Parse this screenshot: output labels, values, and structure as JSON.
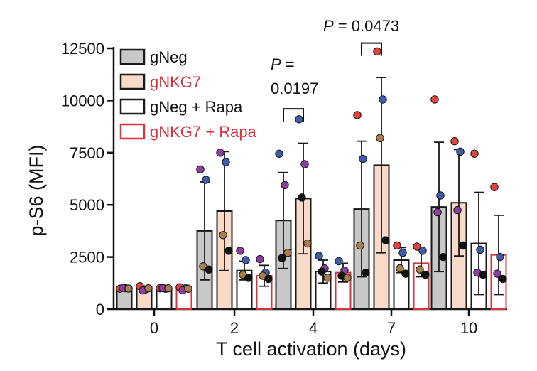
{
  "chart_data": {
    "type": "bar",
    "xlabel": "T cell activation (days)",
    "ylabel": "p-S6 (MFI)",
    "ylim": [
      0,
      12500
    ],
    "yticks": [
      0,
      2500,
      5000,
      7500,
      10000,
      12500
    ],
    "categories": [
      "0",
      "2",
      "4",
      "7",
      "10"
    ],
    "grid": false,
    "legend_placement": "top-left",
    "series": [
      {
        "name": "gNeg",
        "fill": "#c8c8c8",
        "stroke": "#1a1a1a",
        "text_color": "#111111",
        "values": [
          1000,
          3750,
          4250,
          4800,
          4900
        ],
        "errors": [
          80,
          2350,
          2300,
          3250,
          3100
        ],
        "points": [
          [
            980,
            1000,
            1020,
            990
          ],
          [
            6700,
            6200,
            2050,
            1900
          ],
          [
            7450,
            5950,
            2450,
            2700
          ],
          [
            9300,
            7200,
            3050,
            1750
          ],
          [
            10050,
            5450,
            4650,
            2500
          ]
        ]
      },
      {
        "name": "gNKG7",
        "fill": "#f9d9c8",
        "stroke": "#1a1a1a",
        "text_color": "#d9333f",
        "values": [
          1000,
          4700,
          5300,
          6900,
          5100
        ],
        "errors": [
          100,
          2850,
          2650,
          4200,
          2550
        ],
        "points": [
          [
            1100,
            950,
            900,
            1000
          ],
          [
            7500,
            7050,
            3550,
            2800
          ],
          [
            9100,
            6950,
            5350,
            3150
          ],
          [
            12350,
            10050,
            8200,
            3300
          ],
          [
            8050,
            7550,
            4750,
            3050
          ]
        ]
      },
      {
        "name": "gNeg + Rapa",
        "fill": "#ffffff",
        "stroke": "#1a1a1a",
        "text_color": "#111111",
        "values": [
          1000,
          1850,
          1800,
          2350,
          3150
        ],
        "errors": [
          60,
          450,
          550,
          600,
          2450
        ],
        "points": [
          [
            1000,
            980,
            1010,
            1000
          ],
          [
            2800,
            2350,
            1650,
            1500
          ],
          [
            2550,
            1950,
            1800,
            1500
          ],
          [
            3050,
            2700,
            1950,
            1700
          ],
          [
            7450,
            2850,
            1750,
            1650
          ]
        ]
      },
      {
        "name": "gNKG7 + Rapa",
        "fill": "#ffffff",
        "stroke": "#d9333f",
        "text_color": "#d9333f",
        "values": [
          950,
          1600,
          1750,
          2200,
          2600
        ],
        "errors": [
          50,
          500,
          450,
          650,
          1900
        ],
        "points": [
          [
            1050,
            1000,
            900,
            980
          ],
          [
            2400,
            1750,
            1600,
            1450
          ],
          [
            2300,
            1850,
            1600,
            1500
          ],
          [
            3000,
            2800,
            1900,
            1650
          ],
          [
            5850,
            2500,
            1700,
            1450
          ]
        ]
      }
    ],
    "point_colors": [
      "#e3433e",
      "#3f5da8",
      "#8e3ea0",
      "#a97e4f",
      "#111111"
    ],
    "point_color_index": [
      [
        0,
        1,
        2,
        3
      ],
      [
        2,
        1,
        3,
        4
      ],
      [
        1,
        2,
        4,
        3
      ],
      [
        0,
        1,
        3,
        4
      ],
      [
        0,
        1,
        2,
        4
      ]
    ],
    "annotations": [
      {
        "label_italic": "P",
        "label_rest": " =",
        "value": "0.0197",
        "between": [
          "4",
          "gNeg",
          "gNKG7"
        ],
        "bracket_y": 9600
      },
      {
        "label_italic": "P",
        "label_rest": " = 0.0473",
        "value": "",
        "between": [
          "7",
          "gNeg",
          "gNKG7"
        ],
        "bracket_y": 12750
      }
    ]
  }
}
